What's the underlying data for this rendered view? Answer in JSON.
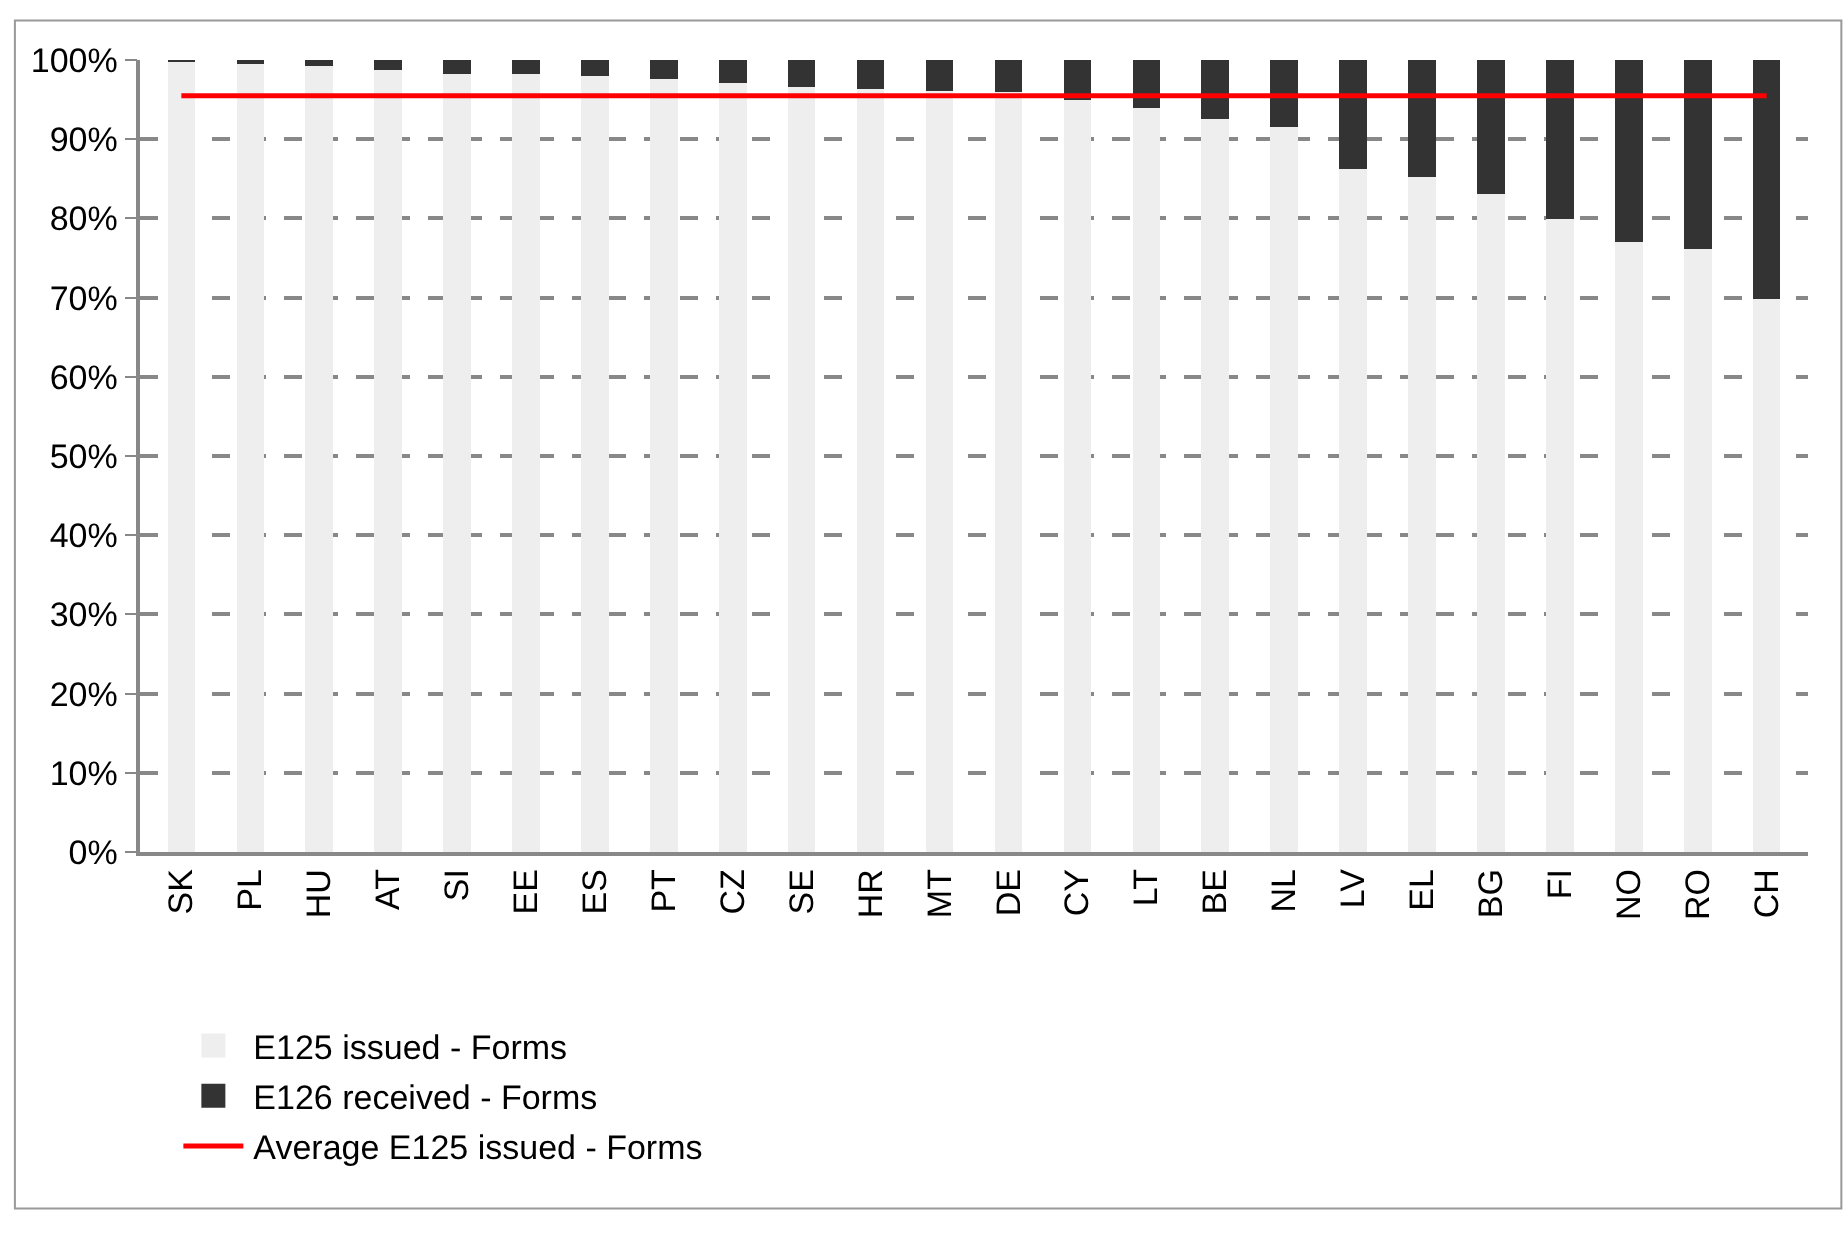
{
  "chart_data": {
    "type": "bar",
    "stacked": true,
    "categories": [
      "SK",
      "PL",
      "HU",
      "AT",
      "SI",
      "EE",
      "ES",
      "PT",
      "CZ",
      "SE",
      "HR",
      "MT",
      "DE",
      "CY",
      "LT",
      "BE",
      "NL",
      "LV",
      "EL",
      "BG",
      "FI",
      "NO",
      "RO",
      "CH"
    ],
    "series": [
      {
        "name": "E125 issued - Forms",
        "color": "#eeeeee",
        "values": [
          99.8,
          99.6,
          99.2,
          98.8,
          98.2,
          98.2,
          98.0,
          97.6,
          97.1,
          96.6,
          96.3,
          96.1,
          95.9,
          95.0,
          93.9,
          92.5,
          91.6,
          86.3,
          85.2,
          83.1,
          79.9,
          77.0,
          76.2,
          69.8
        ]
      },
      {
        "name": "E126 received - Forms",
        "color": "#333333",
        "values": [
          0.2,
          0.4,
          0.8,
          1.2,
          1.8,
          1.8,
          2.0,
          2.4,
          2.9,
          3.4,
          3.7,
          3.9,
          4.1,
          5.0,
          6.1,
          7.5,
          8.4,
          13.7,
          14.8,
          16.9,
          20.1,
          23.0,
          23.8,
          30.2
        ]
      },
      {
        "name": "Average E125 issued - Forms",
        "type": "line",
        "color": "#ff0000",
        "values": [
          95.5,
          95.5,
          95.5,
          95.5,
          95.5,
          95.5,
          95.5,
          95.5,
          95.5,
          95.5,
          95.5,
          95.5,
          95.5,
          95.5,
          95.5,
          95.5,
          95.5,
          95.5,
          95.5,
          95.5,
          95.5,
          95.5,
          95.5,
          95.5
        ]
      }
    ],
    "ylim": [
      0,
      100
    ],
    "yticks": [
      {
        "value": 0,
        "label": "0%"
      },
      {
        "value": 10,
        "label": "10%"
      },
      {
        "value": 20,
        "label": "20%"
      },
      {
        "value": 30,
        "label": "30%"
      },
      {
        "value": 40,
        "label": "40%"
      },
      {
        "value": 50,
        "label": "50%"
      },
      {
        "value": 60,
        "label": "60%"
      },
      {
        "value": 70,
        "label": "70%"
      },
      {
        "value": 80,
        "label": "80%"
      },
      {
        "value": 90,
        "label": "90%"
      },
      {
        "value": 100,
        "label": "100%"
      }
    ],
    "grid": "y",
    "legend": "bottom",
    "marker": "none",
    "line_style": "solid"
  }
}
